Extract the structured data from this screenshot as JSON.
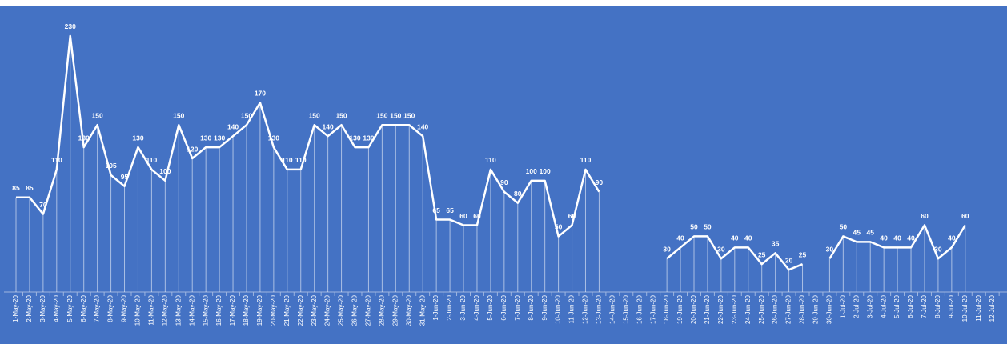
{
  "chart_data": {
    "type": "line",
    "color": "#ffffff",
    "categories": [
      "1-May-20",
      "2-May-20",
      "3-May-20",
      "4-May-20",
      "5-May-20",
      "6-May-20",
      "7-May-20",
      "8-May-20",
      "9-May-20",
      "10-May-20",
      "11-May-20",
      "12-May-20",
      "13-May-20",
      "14-May-20",
      "15-May-20",
      "16-May-20",
      "17-May-20",
      "18-May-20",
      "19-May-20",
      "20-May-20",
      "21-May-20",
      "22-May-20",
      "23-May-20",
      "24-May-20",
      "25-May-20",
      "26-May-20",
      "27-May-20",
      "28-May-20",
      "29-May-20",
      "30-May-20",
      "31-May-20",
      "1-Jun-20",
      "2-Jun-20",
      "3-Jun-20",
      "4-Jun-20",
      "5-Jun-20",
      "6-Jun-20",
      "7-Jun-20",
      "8-Jun-20",
      "9-Jun-20",
      "10-Jun-20",
      "11-Jun-20",
      "12-Jun-20",
      "13-Jun-20",
      "14-Jun-20",
      "15-Jun-20",
      "16-Jun-20",
      "17-Jun-20",
      "18-Jun-20",
      "19-Jun-20",
      "20-Jun-20",
      "21-Jun-20",
      "22-Jun-20",
      "23-Jun-20",
      "24-Jun-20",
      "25-Jun-20",
      "26-Jun-20",
      "27-Jun-20",
      "28-Jun-20",
      "29-Jun-20",
      "30-Jun-20",
      "1-Jul-20",
      "2-Jul-20",
      "3-Jul-20",
      "4-Jul-20",
      "5-Jul-20",
      "6-Jul-20",
      "7-Jul-20",
      "8-Jul-20",
      "9-Jul-20",
      "10-Jul-20",
      "11-Jul-20",
      "12-Jul-20"
    ],
    "values": [
      85,
      85,
      70,
      110,
      230,
      130,
      150,
      105,
      95,
      130,
      110,
      100,
      150,
      120,
      130,
      130,
      140,
      150,
      170,
      130,
      110,
      110,
      150,
      140,
      150,
      130,
      130,
      150,
      150,
      150,
      140,
      65,
      65,
      60,
      60,
      110,
      90,
      80,
      100,
      100,
      50,
      60,
      110,
      90,
      null,
      null,
      null,
      null,
      30,
      40,
      50,
      50,
      30,
      40,
      40,
      25,
      35,
      20,
      25,
      null,
      30,
      50,
      45,
      45,
      40,
      40,
      40,
      60,
      30,
      40,
      60,
      null,
      null
    ],
    "ylim": [
      0,
      240
    ]
  }
}
